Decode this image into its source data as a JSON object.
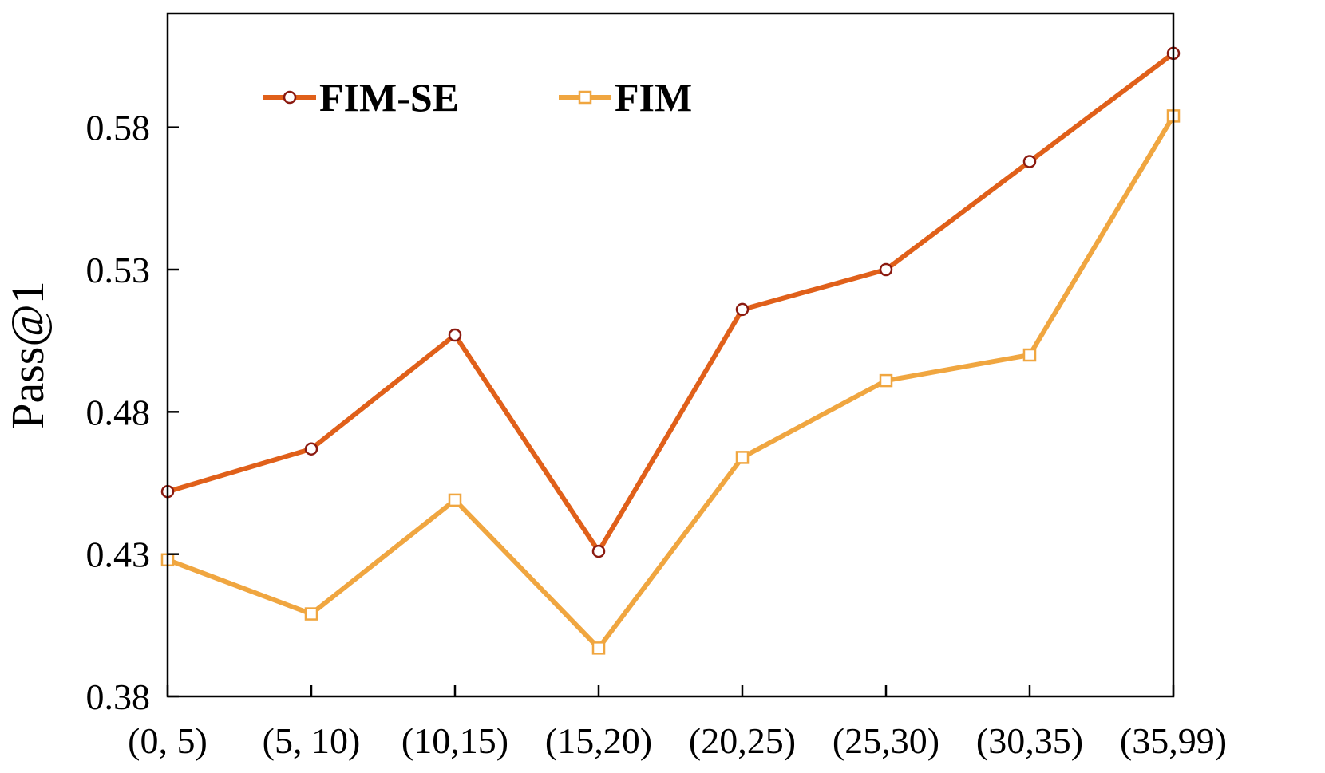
{
  "chart_data": {
    "type": "line",
    "title": "",
    "xlabel": "",
    "ylabel": "Pass@1",
    "categories": [
      "(0, 5)",
      "(5, 10)",
      "(10,15)",
      "(15,20)",
      "(20,25)",
      "(25,30)",
      "(30,35)",
      "(35,99)"
    ],
    "ylim": [
      0.38,
      0.62
    ],
    "yticks": [
      0.38,
      0.43,
      0.48,
      0.53,
      0.58
    ],
    "ytick_labels": [
      "0.38",
      "0.43",
      "0.48",
      "0.53",
      "0.58"
    ],
    "grid": false,
    "legend_position": "top-left",
    "series": [
      {
        "name": "FIM-SE",
        "color": "#e0601a",
        "marker": "circle",
        "values": [
          0.452,
          0.467,
          0.507,
          0.431,
          0.516,
          0.53,
          0.568,
          0.606
        ]
      },
      {
        "name": "FIM",
        "color": "#f0a640",
        "marker": "square",
        "values": [
          0.428,
          0.409,
          0.449,
          0.397,
          0.464,
          0.491,
          0.5,
          0.584
        ]
      }
    ]
  }
}
